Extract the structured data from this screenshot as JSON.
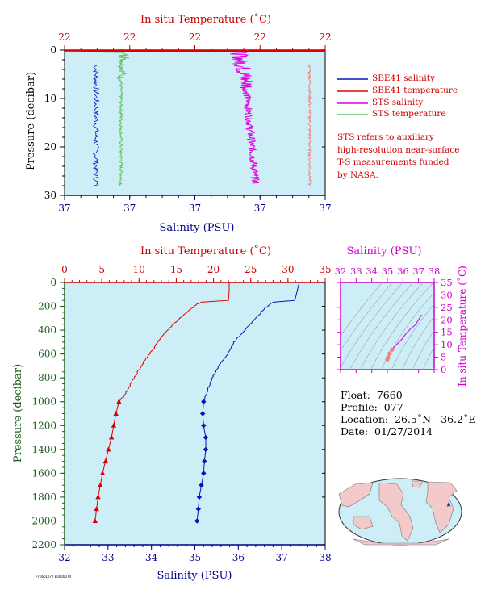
{
  "colors": {
    "plot_bg": "#cdeef7",
    "temperature": "#dd0000",
    "salinity": "#0018bb",
    "sts_salinity": "#e000e0",
    "sts_temperature": "#5ec45e",
    "axis_red": "#cc0000",
    "axis_blue": "#00008b",
    "axis_magenta": "#cc00cc",
    "axis_green": "#1a5e1a"
  },
  "chart_data": [
    {
      "id": "near-surface",
      "type": "line",
      "title": "",
      "top_axis": {
        "label": "In situ Temperature (˚C)",
        "ticks": [
          "22",
          "22",
          "22",
          "22",
          "22"
        ]
      },
      "bottom_axis": {
        "label": "Salinity (PSU)",
        "ticks": [
          "37",
          "37",
          "37",
          "37",
          "37"
        ]
      },
      "left_axis": {
        "label": "Pressure (decibar)",
        "ticks": [
          "0",
          "10",
          "20",
          "30"
        ],
        "ylim": [
          0,
          30
        ],
        "inverted": true
      },
      "grid": false,
      "legend": {
        "placement": "right",
        "entries": [
          {
            "name": "SBE41 salinity",
            "color": "#0018bb"
          },
          {
            "name": "SBE41 temperature",
            "color": "#dd0000"
          },
          {
            "name": "STS salinity",
            "color": "#e000e0"
          },
          {
            "name": "STS temperature",
            "color": "#5ec45e"
          }
        ]
      },
      "note": "STS refers to auxiliary\nhigh-resolution near-surface\nT-S measurements funded\nby NASA.",
      "series": [
        {
          "name": "SBE41 salinity",
          "trace": "sbe_sal_surface"
        },
        {
          "name": "SBE41 temperature",
          "trace": "sbe_temp_surface"
        },
        {
          "name": "STS salinity",
          "trace": "sts_sal"
        },
        {
          "name": "STS temperature",
          "trace": "sts_temp"
        }
      ]
    },
    {
      "id": "full-profile",
      "type": "line",
      "title": "",
      "top_axis": {
        "label": "In situ Temperature (˚C)",
        "ticks": [
          "0",
          "5",
          "10",
          "15",
          "20",
          "25",
          "30",
          "35"
        ],
        "xlim": [
          0,
          35
        ]
      },
      "bottom_axis": {
        "label": "Salinity (PSU)",
        "ticks": [
          "32",
          "33",
          "34",
          "35",
          "36",
          "37",
          "38"
        ],
        "xlim": [
          32,
          38
        ]
      },
      "left_axis": {
        "label": "Pressure (decibar)",
        "ticks": [
          "0",
          "200",
          "400",
          "600",
          "800",
          "1000",
          "1200",
          "1400",
          "1600",
          "1800",
          "2000",
          "2200"
        ],
        "ylim": [
          0,
          2200
        ],
        "inverted": true
      },
      "grid": false,
      "series": [
        {
          "name": "",
          "quantity": "temperature",
          "pressure": [
            0,
            80,
            150,
            165,
            180,
            250,
            350,
            450,
            550,
            650,
            750,
            850,
            950,
            1000,
            1100,
            1200,
            1300,
            1400,
            1500,
            1600,
            1700,
            1800,
            1900,
            2000
          ],
          "values": [
            22.1,
            22.1,
            22.0,
            18.4,
            17.8,
            16.4,
            14.6,
            13.1,
            12.0,
            10.8,
            9.8,
            8.9,
            8.0,
            7.3,
            6.9,
            6.6,
            6.3,
            5.9,
            5.5,
            5.1,
            4.8,
            4.5,
            4.3,
            4.1
          ],
          "markers_from_pressure": 1000
        },
        {
          "name": "",
          "quantity": "salinity",
          "pressure": [
            0,
            80,
            150,
            165,
            180,
            220,
            300,
            400,
            500,
            600,
            700,
            800,
            900,
            1000,
            1100,
            1200,
            1300,
            1400,
            1500,
            1600,
            1700,
            1800,
            1900,
            2000
          ],
          "values": [
            37.4,
            37.35,
            37.3,
            36.8,
            36.75,
            36.6,
            36.4,
            36.15,
            35.9,
            35.75,
            35.55,
            35.4,
            35.3,
            35.2,
            35.18,
            35.2,
            35.25,
            35.25,
            35.22,
            35.2,
            35.15,
            35.1,
            35.08,
            35.05
          ],
          "markers_from_pressure": 1000
        }
      ]
    },
    {
      "id": "t-s-diagram",
      "type": "scatter",
      "title": "",
      "top_axis": {
        "label": "Salinity (PSU)",
        "ticks": [
          "32",
          "33",
          "34",
          "35",
          "36",
          "37",
          "38"
        ],
        "xlim": [
          32,
          38
        ]
      },
      "right_axis": {
        "label": "In situ Temperature (˚C)",
        "ticks": [
          "0",
          "5",
          "10",
          "15",
          "20",
          "25",
          "30",
          "35"
        ],
        "ylim": [
          0,
          35
        ]
      },
      "grid": false,
      "series": [
        {
          "name": "",
          "salinity": [
            35.0,
            35.05,
            35.15,
            35.3,
            35.55,
            35.9,
            36.2,
            36.5,
            36.8,
            37.2
          ],
          "temperature": [
            4.1,
            5.0,
            6.5,
            8.0,
            9.8,
            12.0,
            14.5,
            16.5,
            18.0,
            22.0
          ]
        }
      ]
    }
  ],
  "float_info": {
    "float": "Float:  7660",
    "profile": "Profile:  077",
    "location": "Location:  26.5˚N  -36.2˚E",
    "date": "Date:  01/27/2014"
  },
  "map": {
    "icon": "world-map-icon",
    "marker_color": "#0018bb"
  },
  "footer_text": "P7660L077 E0000074"
}
